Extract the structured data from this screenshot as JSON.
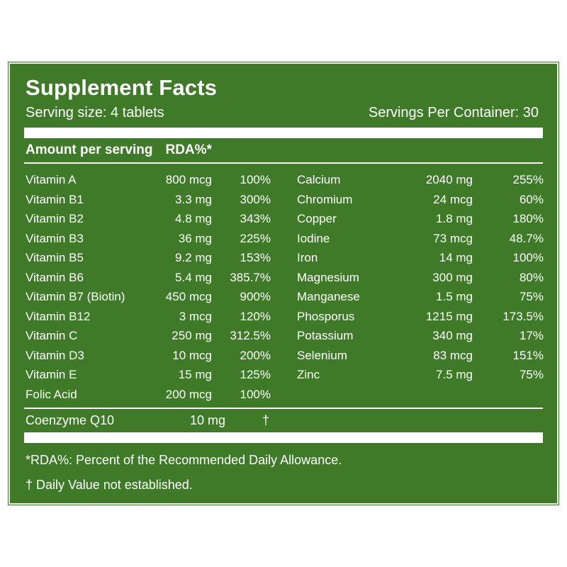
{
  "title": "Supplement Facts",
  "serving_size": "Serving size: 4 tablets",
  "servings_per_container": "Servings Per Container: 30",
  "header": {
    "amount": "Amount per serving",
    "rda": "RDA%*"
  },
  "vitamins": [
    {
      "name": "Vitamin A",
      "amount": "800 mcg",
      "rda": "100%"
    },
    {
      "name": "Vitamin B1",
      "amount": "3.3 mg",
      "rda": "300%"
    },
    {
      "name": "Vitamin B2",
      "amount": "4.8 mg",
      "rda": "343%"
    },
    {
      "name": "Vitamin B3",
      "amount": "36 mg",
      "rda": "225%"
    },
    {
      "name": "Vitamin B5",
      "amount": "9.2 mg",
      "rda": "153%"
    },
    {
      "name": "Vitamin B6",
      "amount": "5.4 mg",
      "rda": "385.7%"
    },
    {
      "name": "Vitamin B7 (Biotin)",
      "amount": "450 mcg",
      "rda": "900%"
    },
    {
      "name": "Vitamin B12",
      "amount": "3 mcg",
      "rda": "120%"
    },
    {
      "name": "Vitamin C",
      "amount": "250 mg",
      "rda": "312.5%"
    },
    {
      "name": "Vitamin D3",
      "amount": "10 mcg",
      "rda": "200%"
    },
    {
      "name": "Vitamin E",
      "amount": "15 mg",
      "rda": "125%"
    },
    {
      "name": "Folic Acid",
      "amount": "200 mcg",
      "rda": "100%"
    }
  ],
  "minerals": [
    {
      "name": "Calcium",
      "amount": "2040 mg",
      "rda": "255%"
    },
    {
      "name": "Chromium",
      "amount": "24 mcg",
      "rda": "60%"
    },
    {
      "name": "Copper",
      "amount": "1.8 mg",
      "rda": "180%"
    },
    {
      "name": "Iodine",
      "amount": "73 mcg",
      "rda": "48.7%"
    },
    {
      "name": "Iron",
      "amount": "14 mg",
      "rda": "100%"
    },
    {
      "name": "Magnesium",
      "amount": "300 mg",
      "rda": "80%"
    },
    {
      "name": "Manganese",
      "amount": "1.5 mg",
      "rda": "75%"
    },
    {
      "name": "Phosporus",
      "amount": "1215 mg",
      "rda": "173.5%"
    },
    {
      "name": "Potassium",
      "amount": "340 mg",
      "rda": "17%"
    },
    {
      "name": "Selenium",
      "amount": "83 mcg",
      "rda": "151%"
    },
    {
      "name": "Zinc",
      "amount": "7.5 mg",
      "rda": "75%"
    }
  ],
  "other": {
    "name": "Coenzyme Q10",
    "amount": "10 mg",
    "mark": "†"
  },
  "footnotes": [
    "*RDA%: Percent of the Recommended Daily Allowance.",
    "† Daily Value not established."
  ],
  "colors": {
    "panel_green": "#3f7a28",
    "text": "#ffffff"
  }
}
